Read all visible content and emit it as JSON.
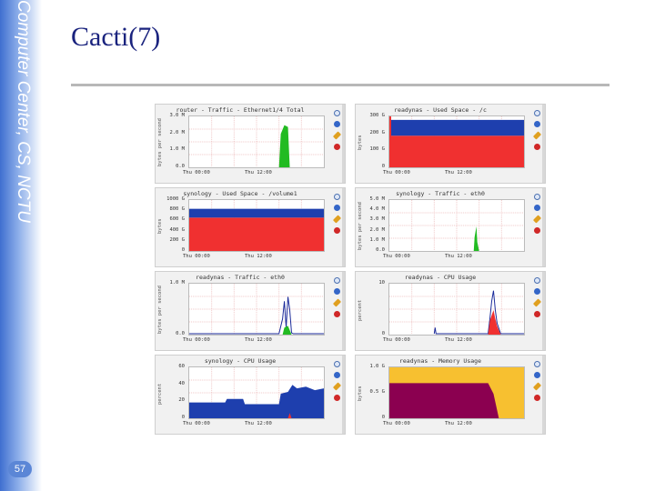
{
  "sidebar": {
    "vertical_text": "Computer Center, CS, NCTU",
    "page_number": "57"
  },
  "slide": {
    "title": "Cacti(7)"
  },
  "panels": [
    {
      "title": "router - Traffic - Ethernet1/4 Total",
      "ylabel": "bytes per second",
      "yticks": [
        "3.0 M",
        "2.0 M",
        "1.0 M",
        "0.0"
      ],
      "xticks": [
        "Thu 00:00",
        "Thu 12:00"
      ]
    },
    {
      "title": "readynas - Used Space - /c",
      "ylabel": "bytes",
      "yticks": [
        "300 G",
        "200 G",
        "100 G",
        "0"
      ],
      "xticks": [
        "Thu 00:00",
        "Thu 12:00"
      ]
    },
    {
      "title": "synology - Used Space - /volume1",
      "ylabel": "bytes",
      "yticks": [
        "1000 G",
        "800 G",
        "600 G",
        "400 G",
        "200 G",
        "0"
      ],
      "xticks": [
        "Thu 00:00",
        "Thu 12:00"
      ]
    },
    {
      "title": "synology - Traffic - eth0",
      "ylabel": "bytes per second",
      "yticks": [
        "5.0 M",
        "4.0 M",
        "3.0 M",
        "2.0 M",
        "1.0 M",
        "0.0"
      ],
      "xticks": [
        "Thu 00:00",
        "Thu 12:00"
      ]
    },
    {
      "title": "readynas - Traffic - eth0",
      "ylabel": "bytes per second",
      "yticks": [
        "1.0 M",
        "0.0"
      ],
      "xticks": [
        "Thu 00:00",
        "Thu 12:00"
      ]
    },
    {
      "title": "readynas - CPU Usage",
      "ylabel": "percent",
      "yticks": [
        "10",
        "0"
      ],
      "xticks": [
        "Thu 00:00",
        "Thu 12:00"
      ]
    },
    {
      "title": "synology - CPU Usage",
      "ylabel": "percent",
      "yticks": [
        "60",
        "40",
        "20",
        "0"
      ],
      "xticks": [
        "Thu 00:00",
        "Thu 12:00"
      ]
    },
    {
      "title": "readynas - Memory Usage",
      "ylabel": "bytes",
      "yticks": [
        "1.0 G",
        "0.5 G",
        "0"
      ],
      "xticks": [
        "Thu 00:00",
        "Thu 12:00"
      ]
    }
  ],
  "colors": {
    "title": "#1a237e",
    "blue_area": "#1e3fae",
    "red_area": "#f03030",
    "green_area": "#22bb22",
    "purple_area": "#8b0050",
    "yellow_area": "#f7c030",
    "line_blue": "#1a2a9a"
  },
  "icons": [
    "zoom-icon",
    "blue-circle-icon",
    "edit-icon",
    "delete-icon"
  ]
}
